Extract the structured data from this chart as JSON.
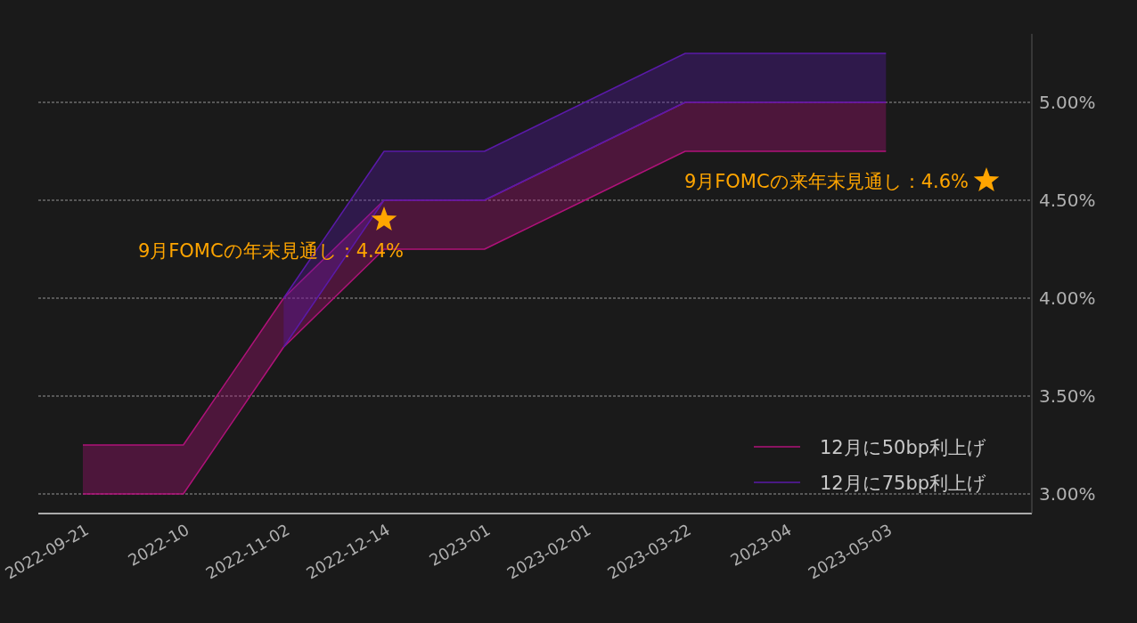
{
  "chart_data": {
    "type": "area",
    "categories": [
      "2022-09-21",
      "2022-10",
      "2022-11-02",
      "2022-12-14",
      "2023-01",
      "2023-02-01",
      "2023-03-22",
      "2023-04",
      "2023-05-03",
      null
    ],
    "series": [
      {
        "name": "12月に50bp利上げ",
        "color": "#b0127a",
        "values": [
          3.25,
          3.25,
          4.0,
          4.5,
          4.5,
          4.75,
          5.0,
          5.0,
          5.0,
          null
        ]
      },
      {
        "name": "12月に75bp利上げ",
        "color": "#5a1aa8",
        "values": [
          null,
          null,
          4.0,
          4.75,
          4.75,
          5.0,
          5.25,
          5.25,
          5.25,
          null
        ]
      },
      {
        "type": "line",
        "color": "#b0127a",
        "values": [
          3.0,
          3.0,
          3.75,
          4.25,
          4.25,
          4.5,
          4.75,
          4.75,
          4.75,
          null
        ]
      },
      {
        "type": "line",
        "color": "#5a1aa8",
        "values": [
          null,
          null,
          3.75,
          4.5,
          4.5,
          4.75,
          5.0,
          5.0,
          5.0,
          null
        ]
      },
      {
        "type": "scatter",
        "marker": "star",
        "color": "#ffa500",
        "values": [
          null,
          null,
          null,
          4.4,
          null,
          null,
          null,
          null,
          null,
          4.6
        ]
      }
    ],
    "ylim": [
      2.9,
      5.35
    ],
    "yticks": [
      {
        "value": 3,
        "label": "3.00%"
      },
      {
        "value": 3.5,
        "label": "3.50%"
      },
      {
        "value": 4,
        "label": "4.00%"
      },
      {
        "value": 4.5,
        "label": "4.50%"
      },
      {
        "value": 5,
        "label": "5.00%"
      }
    ],
    "grid": "y",
    "legend": "bottom right",
    "annotations": [
      "9月FOMCの年末見通し：4.4%",
      "9月FOMCの来年末見通し：4.6%"
    ]
  }
}
